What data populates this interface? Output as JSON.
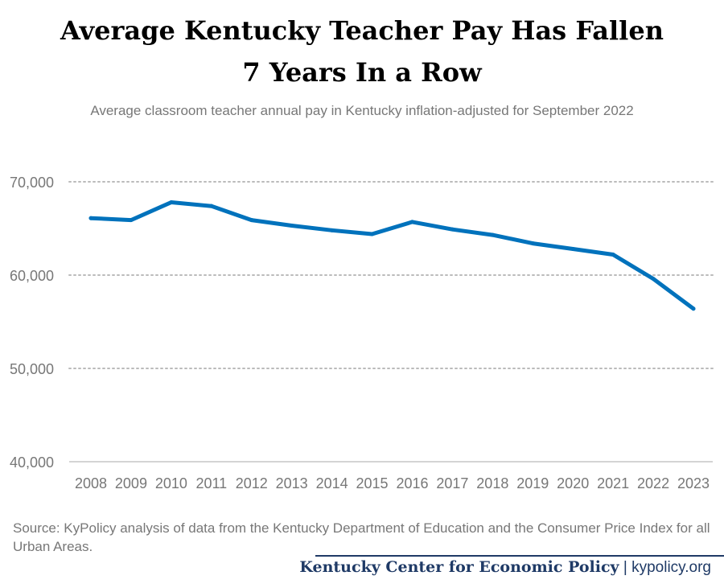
{
  "title_line1": "Average Kentucky Teacher Pay Has Fallen",
  "title_line2": "7 Years In a Row",
  "subtitle": "Average classroom teacher annual pay in Kentucky inflation-adjusted for September 2022",
  "source": "Source: KyPolicy analysis of data from the Kentucky Department of Education and the Consumer Price Index for all Urban Areas.",
  "footer": {
    "org": "Kentucky Center for Economic Policy",
    "separator": "|",
    "site": "kypolicy.org"
  },
  "colors": {
    "line": "#0072bc",
    "grid": "#bbbbbb",
    "tick_text": "#777777",
    "footer": "#1f3a66"
  },
  "chart_data": {
    "type": "line",
    "x": [
      "2008",
      "2009",
      "2010",
      "2011",
      "2012",
      "2013",
      "2014",
      "2015",
      "2016",
      "2017",
      "2018",
      "2019",
      "2020",
      "2021",
      "2022",
      "2023"
    ],
    "series": [
      {
        "values": [
          66100,
          65900,
          67800,
          67400,
          65900,
          65300,
          64800,
          64400,
          65700,
          64900,
          64300,
          63400,
          62800,
          62200,
          59600,
          56400
        ]
      }
    ],
    "ylim": [
      40000,
      70000
    ],
    "yticks": [
      40000,
      50000,
      60000,
      70000
    ],
    "ytick_labels": [
      "40,000",
      "50,000",
      "60,000",
      "70,000"
    ],
    "grid": "horizontal dotted",
    "legend": "none"
  }
}
